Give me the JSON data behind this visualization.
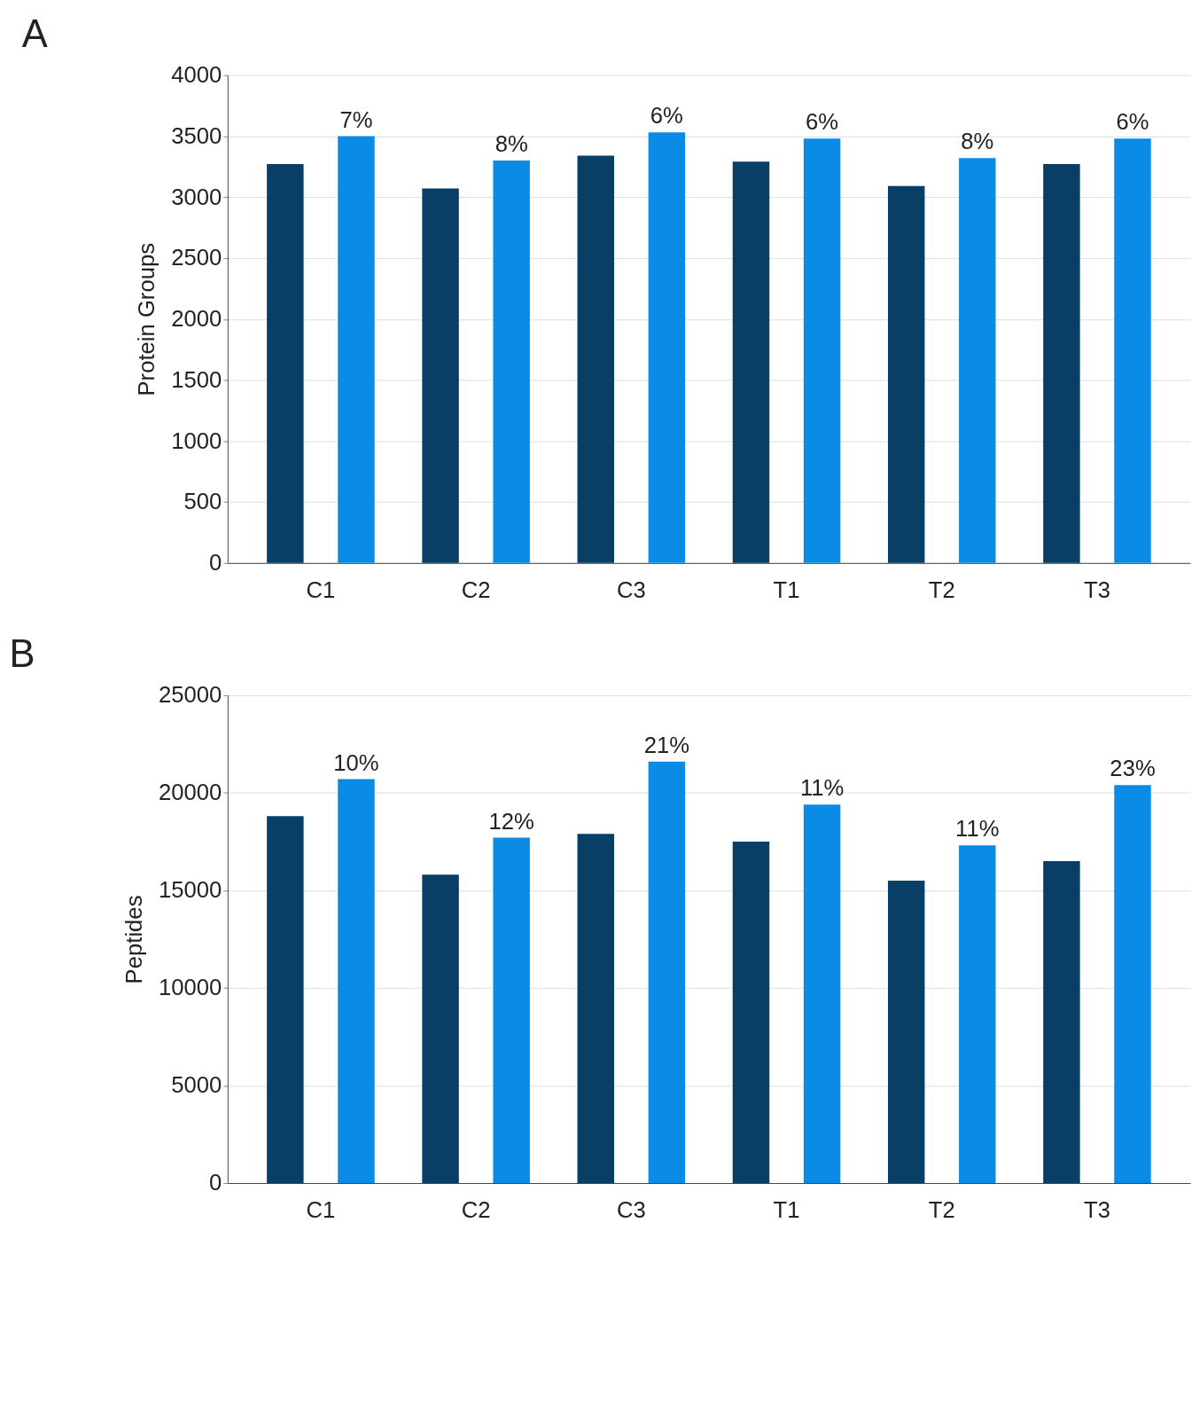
{
  "chart_data": [
    {
      "type": "bar",
      "title": "A",
      "ylabel": "Protein Groups",
      "categories": [
        "C1",
        "C2",
        "C3",
        "T1",
        "T2",
        "T3"
      ],
      "ylim": [
        0,
        4000
      ],
      "yticks": [
        0,
        500,
        1000,
        1500,
        2000,
        2500,
        3000,
        3500,
        4000
      ],
      "grid": "y",
      "legend": false,
      "series": [
        {
          "color": "#073f66",
          "values": [
            3270,
            3070,
            3340,
            3290,
            3090,
            3270
          ]
        },
        {
          "color": "#0a8be6",
          "values": [
            3500,
            3300,
            3530,
            3480,
            3320,
            3480
          ]
        }
      ],
      "annotations": [
        "7%",
        "8%",
        "6%",
        "6%",
        "8%",
        "6%"
      ]
    },
    {
      "type": "bar",
      "title": "B",
      "ylabel": "Peptides",
      "categories": [
        "C1",
        "C2",
        "C3",
        "T1",
        "T2",
        "T3"
      ],
      "ylim": [
        0,
        25000
      ],
      "yticks": [
        0,
        5000,
        10000,
        15000,
        20000,
        25000
      ],
      "grid": "y",
      "legend": false,
      "series": [
        {
          "color": "#073f66",
          "values": [
            18800,
            15800,
            17900,
            17500,
            15500,
            16500
          ]
        },
        {
          "color": "#0a8be6",
          "values": [
            20700,
            17700,
            21600,
            19400,
            17300,
            20400
          ]
        }
      ],
      "annotations": [
        "10%",
        "12%",
        "21%",
        "11%",
        "11%",
        "23%"
      ]
    }
  ]
}
